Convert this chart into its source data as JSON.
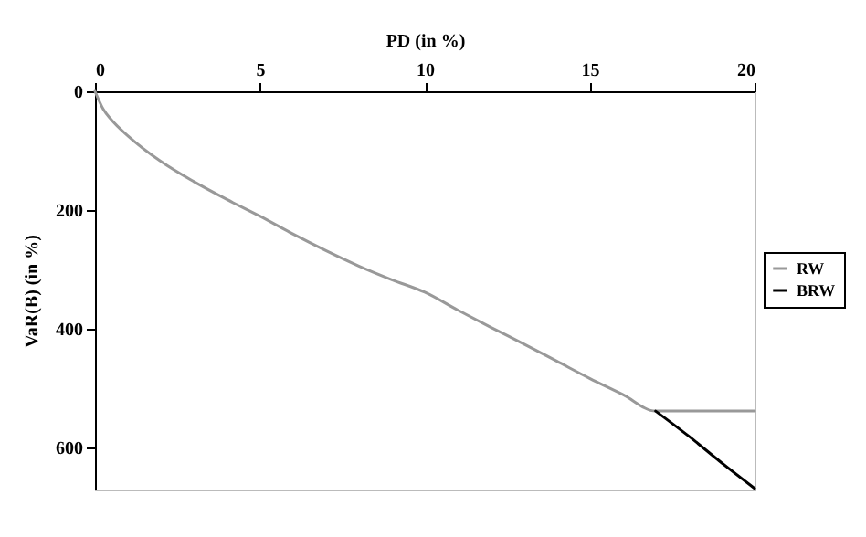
{
  "chart_data": {
    "type": "line",
    "xlabel": "PD (in %)",
    "ylabel": "VaR(B) (in %)",
    "xlim": [
      0,
      20
    ],
    "xticks": [
      0,
      5,
      10,
      15,
      20
    ],
    "ylim": [
      670,
      0
    ],
    "yticks": [
      0,
      200,
      400,
      600
    ],
    "legend": "right",
    "grid": false,
    "series": [
      {
        "name": "RW",
        "color": "#999999",
        "x": [
          0,
          0.25,
          0.5,
          1,
          2,
          3,
          4,
          5,
          6,
          7,
          8,
          9,
          10,
          11,
          12,
          13,
          14,
          15,
          16,
          17,
          20
        ],
        "values": [
          0,
          30,
          48,
          75,
          118,
          152,
          182,
          210,
          240,
          268,
          294,
          317,
          338,
          368,
          397,
          425,
          454,
          483,
          510,
          538,
          538
        ]
      },
      {
        "name": "BRW",
        "color": "#000000",
        "x": [
          17,
          18,
          19,
          20
        ],
        "values": [
          538,
          580,
          625,
          668
        ]
      }
    ]
  }
}
